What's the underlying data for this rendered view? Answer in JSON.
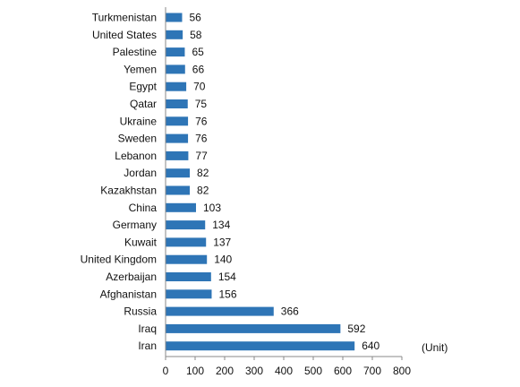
{
  "chart_data": {
    "type": "bar",
    "orientation": "horizontal",
    "categories": [
      "Turkmenistan",
      "United States",
      "Palestine",
      "Yemen",
      "Egypt",
      "Qatar",
      "Ukraine",
      "Sweden",
      "Lebanon",
      "Jordan",
      "Kazakhstan",
      "China",
      "Germany",
      "Kuwait",
      "United Kingdom",
      "Azerbaijan",
      "Afghanistan",
      "Russia",
      "Iraq",
      "Iran"
    ],
    "values": [
      56,
      58,
      65,
      66,
      70,
      75,
      76,
      76,
      77,
      82,
      82,
      103,
      134,
      137,
      140,
      154,
      156,
      366,
      592,
      640
    ],
    "data_labels": [
      "56",
      "58",
      "65",
      "66",
      "70",
      "75",
      "76",
      "76",
      "77",
      "82",
      "82",
      "103",
      "134",
      "137",
      "140",
      "154",
      "156",
      "366",
      "592",
      "640"
    ],
    "xticks": [
      "0",
      "100",
      "200",
      "300",
      "400",
      "500",
      "600",
      "700",
      "800"
    ],
    "xlim": [
      0,
      800
    ],
    "unit_label": "(Unit)",
    "bar_color": "#2e75b6",
    "grid": false,
    "legend": "none"
  }
}
